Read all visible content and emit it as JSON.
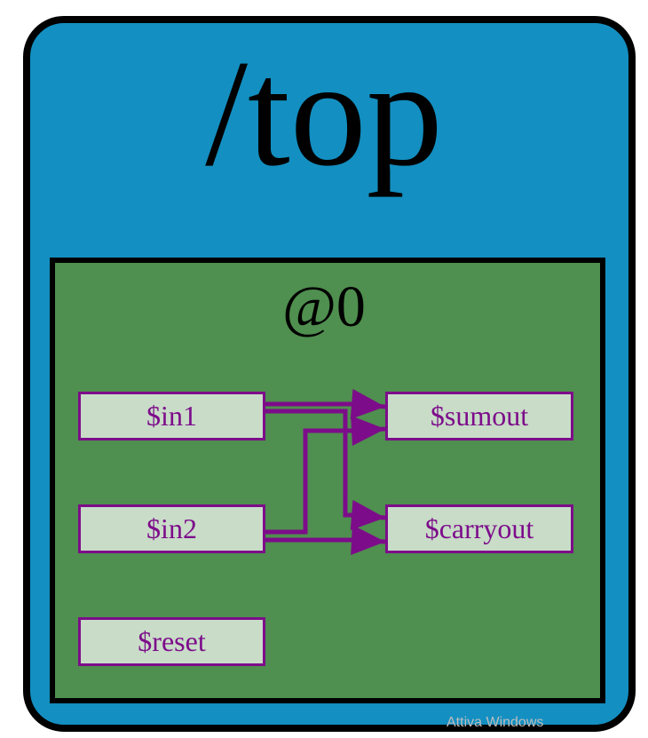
{
  "scope": {
    "label": "/top",
    "fill": "#138fc1",
    "border": "#000000"
  },
  "stage_block": {
    "label": "@0",
    "fill": "#4f8f4f",
    "border": "#000000"
  },
  "signals": [
    {
      "id": "in1",
      "label": "$in1"
    },
    {
      "id": "in2",
      "label": "$in2"
    },
    {
      "id": "reset",
      "label": "$reset"
    },
    {
      "id": "sumout",
      "label": "$sumout"
    },
    {
      "id": "carryout",
      "label": "$carryout"
    }
  ],
  "connections": [
    {
      "from": "in1",
      "to": "sumout"
    },
    {
      "from": "in1",
      "to": "carryout"
    },
    {
      "from": "in2",
      "to": "sumout"
    },
    {
      "from": "in2",
      "to": "carryout"
    }
  ],
  "style": {
    "node_fill": "#c8dcc8",
    "node_border": "#7d0c8a",
    "node_text": "#7d0c8a",
    "wire_color": "#7d0c8a"
  },
  "watermark": {
    "text": "Attiva Windows"
  }
}
